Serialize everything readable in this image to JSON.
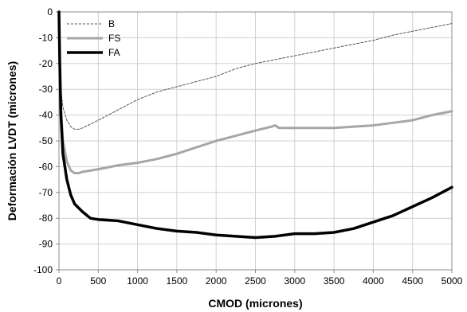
{
  "chart_data": {
    "type": "line",
    "xlabel": "CMOD (micrones)",
    "ylabel": "Deformación LVDT (micrones)",
    "xlim": [
      0,
      5000
    ],
    "ylim": [
      -100,
      0
    ],
    "xticks": [
      0,
      500,
      1000,
      1500,
      2000,
      2500,
      3000,
      3500,
      4000,
      4500,
      5000
    ],
    "yticks": [
      0,
      -10,
      -20,
      -30,
      -40,
      -50,
      -60,
      -70,
      -80,
      -90,
      -100
    ],
    "grid": true,
    "legend_position": "top-left",
    "series": [
      {
        "name": "B",
        "color": "#555555",
        "style": "dashed",
        "points": [
          [
            0,
            0
          ],
          [
            10,
            -15
          ],
          [
            25,
            -30
          ],
          [
            50,
            -37
          ],
          [
            100,
            -42
          ],
          [
            150,
            -44.5
          ],
          [
            200,
            -45.5
          ],
          [
            250,
            -45.5
          ],
          [
            300,
            -45
          ],
          [
            400,
            -43.5
          ],
          [
            500,
            -42
          ],
          [
            750,
            -38
          ],
          [
            1000,
            -34
          ],
          [
            1250,
            -31
          ],
          [
            1500,
            -29
          ],
          [
            1750,
            -27
          ],
          [
            2000,
            -25
          ],
          [
            2250,
            -22
          ],
          [
            2500,
            -20
          ],
          [
            2750,
            -18.5
          ],
          [
            3000,
            -17
          ],
          [
            3250,
            -15.5
          ],
          [
            3500,
            -14
          ],
          [
            3750,
            -12.5
          ],
          [
            4000,
            -11
          ],
          [
            4250,
            -9
          ],
          [
            4500,
            -7.5
          ],
          [
            4750,
            -6
          ],
          [
            5000,
            -4.5
          ]
        ]
      },
      {
        "name": "FS",
        "color": "#a6a6a6",
        "style": "solid",
        "points": [
          [
            0,
            0
          ],
          [
            10,
            -20
          ],
          [
            25,
            -38
          ],
          [
            50,
            -50
          ],
          [
            100,
            -58
          ],
          [
            150,
            -61.5
          ],
          [
            200,
            -62.5
          ],
          [
            250,
            -62.5
          ],
          [
            300,
            -62
          ],
          [
            500,
            -61
          ],
          [
            750,
            -59.5
          ],
          [
            1000,
            -58.5
          ],
          [
            1250,
            -57
          ],
          [
            1500,
            -55
          ],
          [
            1750,
            -52.5
          ],
          [
            2000,
            -50
          ],
          [
            2250,
            -48
          ],
          [
            2500,
            -46
          ],
          [
            2700,
            -44.5
          ],
          [
            2750,
            -44
          ],
          [
            2800,
            -45
          ],
          [
            3000,
            -45
          ],
          [
            3250,
            -45
          ],
          [
            3500,
            -45
          ],
          [
            3750,
            -44.5
          ],
          [
            4000,
            -44
          ],
          [
            4250,
            -43
          ],
          [
            4500,
            -42
          ],
          [
            4750,
            -40
          ],
          [
            5000,
            -38.5
          ]
        ]
      },
      {
        "name": "FA",
        "color": "#000000",
        "style": "solid",
        "points": [
          [
            0,
            0
          ],
          [
            10,
            -20
          ],
          [
            25,
            -40
          ],
          [
            50,
            -55
          ],
          [
            100,
            -65
          ],
          [
            150,
            -71
          ],
          [
            200,
            -74.5
          ],
          [
            300,
            -77.5
          ],
          [
            400,
            -80
          ],
          [
            500,
            -80.5
          ],
          [
            750,
            -81
          ],
          [
            1000,
            -82.5
          ],
          [
            1250,
            -84
          ],
          [
            1500,
            -85
          ],
          [
            1750,
            -85.5
          ],
          [
            2000,
            -86.5
          ],
          [
            2250,
            -87
          ],
          [
            2500,
            -87.5
          ],
          [
            2750,
            -87
          ],
          [
            3000,
            -86
          ],
          [
            3250,
            -86
          ],
          [
            3500,
            -85.5
          ],
          [
            3750,
            -84
          ],
          [
            4000,
            -81.5
          ],
          [
            4250,
            -79
          ],
          [
            4500,
            -75.5
          ],
          [
            4750,
            -72
          ],
          [
            5000,
            -68
          ]
        ]
      }
    ]
  }
}
